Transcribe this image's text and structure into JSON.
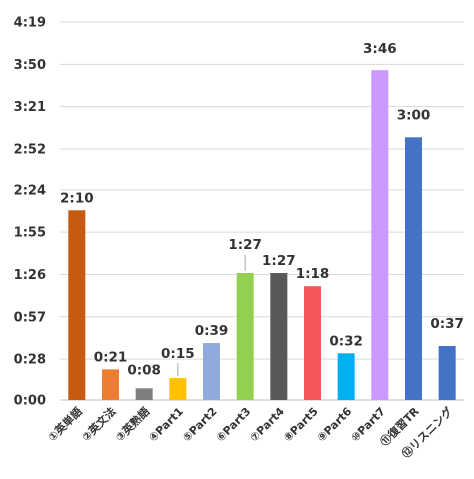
{
  "chart_data": {
    "type": "bar",
    "categories": [
      "①英単語",
      "②英文法",
      "③英熟語",
      "④Part1",
      "⑤Part2",
      "⑥Part3",
      "⑦Part4",
      "⑧Part5",
      "⑨Part6",
      "⑩Part7",
      "⑪復習TR",
      "⑫リスニング"
    ],
    "values": [
      130,
      21,
      8,
      15,
      39,
      87,
      87,
      78,
      32,
      226,
      180,
      37
    ],
    "data_labels": [
      "2:10",
      "0:21",
      "0:08",
      "0:15",
      "0:39",
      "1:27",
      "1:27",
      "1:18",
      "0:32",
      "3:46",
      "3:00",
      "0:37"
    ],
    "colors": [
      "#c55a11",
      "#ed7d31",
      "#7f7f7f",
      "#ffc000",
      "#8faadc",
      "#92d050",
      "#595959",
      "#f4575a",
      "#00b0f0",
      "#cc99ff",
      "#4472c4",
      "#4472c4"
    ],
    "y_ticks": [
      0,
      28,
      57,
      86,
      115,
      144,
      172,
      201,
      230,
      259
    ],
    "y_tick_labels": [
      "0:00",
      "0:28",
      "0:57",
      "1:26",
      "1:55",
      "2:24",
      "2:52",
      "3:21",
      "3:50",
      "4:19"
    ],
    "ylim": [
      0,
      259
    ],
    "grid": true,
    "legend": "none",
    "title": "",
    "xlabel": "",
    "ylabel": ""
  }
}
